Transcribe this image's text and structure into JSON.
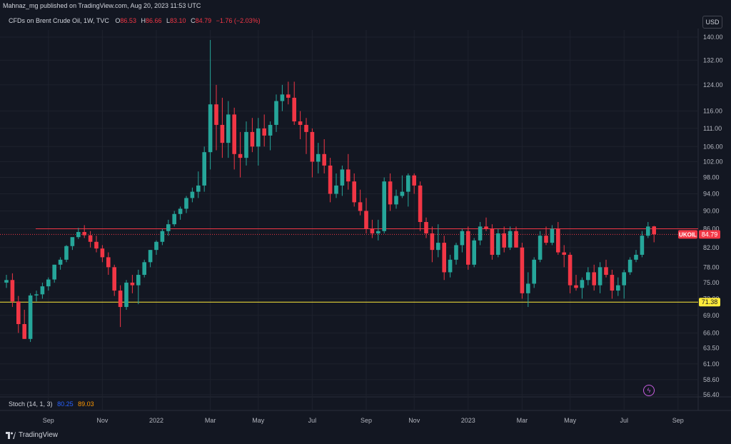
{
  "header": {
    "publish_line": "Mahnaz_mg published on TradingView.com, Aug 20, 2023 11:53 UTC",
    "symbol_title": "CFDs on Brent Crude Oil, 1W, TVC",
    "ohlc": {
      "o_label": "O",
      "o": "86.53",
      "h_label": "H",
      "h": "86.66",
      "l_label": "L",
      "l": "83.10",
      "c_label": "C",
      "c": "84.79",
      "change": "−1.76 (−2.03%)"
    },
    "currency": "USD"
  },
  "stoch": {
    "label": "Stoch (14, 1, 3)",
    "k": "80.25",
    "d": "89.03"
  },
  "brand": "TradingView",
  "colors": {
    "background": "#131722",
    "up": "#26a69a",
    "down": "#f23645",
    "resistance": "#f23645",
    "support": "#ffeb3b",
    "grid": "#1e222d",
    "text": "#b2b5be"
  },
  "chart_data": {
    "type": "candlestick",
    "title": "CFDs on Brent Crude Oil, 1W, TVC",
    "y_scale": "log",
    "ylim": [
      56.4,
      140.0
    ],
    "y_ticks": [
      "140.00",
      "132.00",
      "124.00",
      "116.00",
      "111.00",
      "106.00",
      "102.00",
      "98.00",
      "94.00",
      "90.00",
      "86.00",
      "82.00",
      "78.00",
      "75.00",
      "72.00",
      "69.00",
      "66.00",
      "63.50",
      "61.00",
      "58.60",
      "56.40"
    ],
    "x_ticks": [
      {
        "label": "Sep",
        "week": 7
      },
      {
        "label": "Nov",
        "week": 16
      },
      {
        "label": "2022",
        "week": 25
      },
      {
        "label": "Mar",
        "week": 34
      },
      {
        "label": "May",
        "week": 42
      },
      {
        "label": "Jul",
        "week": 51
      },
      {
        "label": "Sep",
        "week": 60
      },
      {
        "label": "Nov",
        "week": 68
      },
      {
        "label": "2023",
        "week": 77
      },
      {
        "label": "Mar",
        "week": 86
      },
      {
        "label": "May",
        "week": 94
      },
      {
        "label": "Jul",
        "week": 103
      },
      {
        "label": "Sep",
        "week": 112
      }
    ],
    "last_week": 108,
    "candles": [
      [
        0,
        75.0,
        76.5,
        74.0,
        75.5
      ],
      [
        1,
        75.5,
        76.8,
        70.5,
        71.5
      ],
      [
        2,
        71.5,
        72.5,
        66.0,
        67.5
      ],
      [
        3,
        67.5,
        70.0,
        65.0,
        65.0
      ],
      [
        4,
        65.0,
        73.0,
        64.5,
        72.6
      ],
      [
        5,
        72.6,
        73.5,
        71.5,
        72.8
      ],
      [
        6,
        72.8,
        75.0,
        72.0,
        74.3
      ],
      [
        7,
        74.3,
        76.0,
        73.5,
        75.6
      ],
      [
        8,
        75.6,
        78.5,
        75.0,
        78.5
      ],
      [
        9,
        78.5,
        80.0,
        77.5,
        79.5
      ],
      [
        10,
        79.5,
        82.5,
        79.0,
        82.3
      ],
      [
        11,
        82.3,
        84.0,
        81.5,
        84.2
      ],
      [
        12,
        84.2,
        86.2,
        83.8,
        85.3
      ],
      [
        13,
        85.3,
        86.8,
        84.0,
        84.6
      ],
      [
        14,
        84.6,
        85.5,
        82.0,
        83.2
      ],
      [
        15,
        83.2,
        84.5,
        81.0,
        81.8
      ],
      [
        16,
        81.8,
        82.5,
        79.0,
        80.0
      ],
      [
        17,
        80.0,
        81.0,
        76.5,
        78.0
      ],
      [
        18,
        78.0,
        78.5,
        72.5,
        73.5
      ],
      [
        19,
        73.5,
        74.5,
        67.0,
        70.5
      ],
      [
        20,
        70.5,
        75.5,
        70.0,
        75.0
      ],
      [
        21,
        75.0,
        76.5,
        73.0,
        74.5
      ],
      [
        22,
        74.5,
        77.5,
        71.0,
        76.5
      ],
      [
        23,
        76.5,
        79.5,
        76.0,
        79.0
      ],
      [
        24,
        79.0,
        81.5,
        78.0,
        81.5
      ],
      [
        25,
        81.5,
        83.5,
        80.5,
        83.2
      ],
      [
        26,
        83.2,
        86.0,
        82.5,
        85.5
      ],
      [
        27,
        85.5,
        88.0,
        84.5,
        87.0
      ],
      [
        28,
        87.0,
        90.0,
        86.5,
        89.3
      ],
      [
        29,
        89.3,
        91.0,
        88.0,
        90.5
      ],
      [
        30,
        90.5,
        93.5,
        89.5,
        93.0
      ],
      [
        31,
        93.0,
        95.5,
        92.0,
        94.5
      ],
      [
        32,
        94.5,
        99.5,
        93.0,
        96.0
      ],
      [
        33,
        96.0,
        106.0,
        94.5,
        104.5
      ],
      [
        34,
        104.5,
        139.0,
        100.0,
        118.0
      ],
      [
        35,
        118.0,
        124.0,
        105.0,
        112.0
      ],
      [
        36,
        112.0,
        120.0,
        103.0,
        107.0
      ],
      [
        37,
        107.0,
        119.0,
        103.0,
        115.0
      ],
      [
        38,
        115.0,
        117.0,
        100.0,
        104.0
      ],
      [
        39,
        104.0,
        110.0,
        98.0,
        103.0
      ],
      [
        40,
        103.0,
        113.0,
        101.0,
        110.0
      ],
      [
        41,
        110.0,
        114.0,
        104.5,
        106.0
      ],
      [
        42,
        106.0,
        114.0,
        101.0,
        111.0
      ],
      [
        43,
        111.0,
        115.0,
        106.0,
        109.0
      ],
      [
        44,
        109.0,
        113.0,
        105.0,
        112.0
      ],
      [
        45,
        112.0,
        121.0,
        110.0,
        119.0
      ],
      [
        46,
        119.0,
        124.0,
        116.0,
        121.0
      ],
      [
        47,
        121.0,
        125.0,
        118.0,
        120.0
      ],
      [
        48,
        120.0,
        125.0,
        112.0,
        113.0
      ],
      [
        49,
        113.0,
        116.0,
        108.0,
        112.0
      ],
      [
        50,
        112.0,
        114.0,
        104.0,
        110.0
      ],
      [
        51,
        110.0,
        111.0,
        98.0,
        102.0
      ],
      [
        52,
        102.0,
        107.0,
        99.0,
        104.0
      ],
      [
        53,
        104.0,
        108.0,
        99.0,
        101.0
      ],
      [
        54,
        101.0,
        103.0,
        92.0,
        94.0
      ],
      [
        55,
        94.0,
        99.0,
        93.0,
        96.0
      ],
      [
        56,
        96.0,
        101.0,
        93.5,
        100.0
      ],
      [
        57,
        100.0,
        104.0,
        95.0,
        97.0
      ],
      [
        58,
        97.0,
        99.0,
        91.0,
        92.0
      ],
      [
        59,
        92.0,
        95.0,
        89.0,
        90.0
      ],
      [
        60,
        90.0,
        93.0,
        85.0,
        86.0
      ],
      [
        61,
        86.0,
        88.0,
        84.0,
        85.0
      ],
      [
        62,
        85.0,
        88.0,
        83.5,
        85.5
      ],
      [
        63,
        85.5,
        98.0,
        85.0,
        97.0
      ],
      [
        64,
        97.0,
        99.0,
        90.0,
        91.5
      ],
      [
        65,
        91.5,
        95.0,
        90.5,
        93.5
      ],
      [
        66,
        93.5,
        98.5,
        93.0,
        94.5
      ],
      [
        67,
        94.5,
        99.0,
        91.0,
        98.5
      ],
      [
        68,
        98.5,
        99.0,
        94.0,
        96.0
      ],
      [
        69,
        96.0,
        97.0,
        85.5,
        87.5
      ],
      [
        70,
        87.5,
        88.5,
        84.0,
        85.0
      ],
      [
        71,
        85.0,
        86.5,
        79.0,
        81.5
      ],
      [
        72,
        81.5,
        87.0,
        80.0,
        83.0
      ],
      [
        73,
        83.0,
        84.5,
        75.5,
        77.0
      ],
      [
        74,
        77.0,
        80.5,
        76.0,
        79.5
      ],
      [
        75,
        79.5,
        83.0,
        78.5,
        82.5
      ],
      [
        76,
        82.5,
        86.0,
        81.0,
        85.5
      ],
      [
        77,
        85.5,
        86.5,
        77.5,
        78.5
      ],
      [
        78,
        78.5,
        84.0,
        78.0,
        83.5
      ],
      [
        79,
        83.5,
        87.5,
        82.5,
        86.5
      ],
      [
        80,
        86.5,
        88.5,
        85.5,
        86.0
      ],
      [
        81,
        86.0,
        87.0,
        79.5,
        80.5
      ],
      [
        82,
        80.5,
        86.0,
        80.0,
        85.0
      ],
      [
        83,
        85.0,
        86.5,
        81.0,
        82.0
      ],
      [
        84,
        82.0,
        86.5,
        81.5,
        85.5
      ],
      [
        85,
        85.5,
        86.5,
        82.0,
        82.0
      ],
      [
        86,
        82.0,
        83.0,
        72.0,
        73.0
      ],
      [
        87,
        73.0,
        77.0,
        70.5,
        74.8
      ],
      [
        88,
        74.8,
        80.0,
        74.0,
        79.5
      ],
      [
        89,
        79.5,
        85.5,
        79.0,
        84.5
      ],
      [
        90,
        84.5,
        86.5,
        82.5,
        83.0
      ],
      [
        91,
        83.0,
        86.8,
        82.5,
        86.0
      ],
      [
        92,
        86.0,
        87.5,
        80.5,
        81.0
      ],
      [
        93,
        81.0,
        82.5,
        78.0,
        80.5
      ],
      [
        94,
        80.5,
        81.0,
        73.0,
        74.5
      ],
      [
        95,
        74.5,
        76.5,
        73.5,
        74.0
      ],
      [
        96,
        74.0,
        76.0,
        72.0,
        75.5
      ],
      [
        97,
        75.5,
        78.0,
        74.5,
        77.0
      ],
      [
        98,
        77.0,
        78.5,
        73.5,
        74.5
      ],
      [
        99,
        74.5,
        79.0,
        73.0,
        78.0
      ],
      [
        100,
        78.0,
        79.5,
        76.0,
        76.5
      ],
      [
        101,
        76.5,
        77.5,
        72.0,
        73.5
      ],
      [
        102,
        73.5,
        76.0,
        72.5,
        74.5
      ],
      [
        103,
        74.5,
        77.5,
        72.0,
        77.0
      ],
      [
        104,
        77.0,
        80.0,
        76.5,
        79.5
      ],
      [
        105,
        79.5,
        81.5,
        79.0,
        80.5
      ],
      [
        106,
        80.5,
        85.5,
        80.0,
        84.5
      ],
      [
        107,
        84.5,
        87.5,
        84.0,
        86.5
      ],
      [
        108,
        86.53,
        86.66,
        83.1,
        84.79
      ]
    ],
    "hlines": [
      {
        "value": 86.0,
        "color": "#f23645",
        "label": ""
      },
      {
        "value": 71.38,
        "color": "#ffeb3b",
        "label": "71.38"
      }
    ],
    "price_label": {
      "text": "UKOIL",
      "value": 84.79,
      "display": "84.79"
    }
  }
}
